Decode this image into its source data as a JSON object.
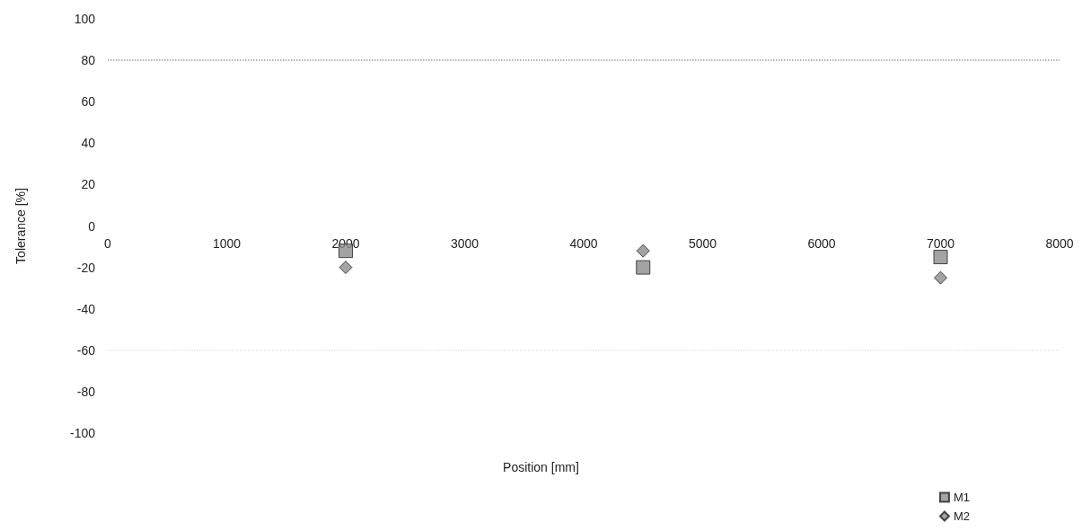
{
  "chart_data": {
    "type": "scatter",
    "xlabel": "Position [mm]",
    "ylabel": "Tolerance [%]",
    "xlim": [
      0,
      8000
    ],
    "xticks": [
      0,
      1000,
      2000,
      3000,
      4000,
      5000,
      6000,
      7000,
      8000
    ],
    "ylim": [
      -100,
      100
    ],
    "yticks": [
      -100,
      -80,
      -60,
      -40,
      -20,
      0,
      20,
      40,
      60,
      80,
      100
    ],
    "series": [
      {
        "name": "M1",
        "color": "#8c8c8c",
        "marker": "square",
        "x": [
          2000,
          4500,
          7000
        ],
        "values": [
          -12,
          -20,
          -15
        ]
      },
      {
        "name": "M2",
        "color": "#8c8c8c",
        "marker": "diamond",
        "x": [
          2000,
          4500,
          7000
        ],
        "values": [
          -20,
          -12,
          -25
        ]
      }
    ],
    "ref_lines": [
      {
        "axis": "y",
        "value": 80,
        "color": "#9a9a9a",
        "line_style": "dotted"
      },
      {
        "axis": "y",
        "value": -60,
        "color": "#e6e6e6",
        "line_style": "dotted"
      }
    ],
    "grid": false,
    "legend": "bottom right"
  }
}
